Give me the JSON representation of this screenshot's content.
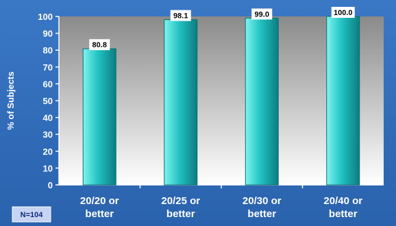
{
  "chart_data": {
    "type": "bar",
    "title": "",
    "xlabel": "",
    "ylabel": "% of Subjects",
    "categories": [
      "20/20 or better",
      "20/25 or better",
      "20/30 or better",
      "20/40 or better"
    ],
    "category_lines": [
      [
        "20/20 or",
        "better"
      ],
      [
        "20/25 or",
        "better"
      ],
      [
        "20/30 or",
        "better"
      ],
      [
        "20/40 or",
        "better"
      ]
    ],
    "values": [
      80.8,
      98.1,
      99.0,
      100.0
    ],
    "value_labels": [
      "80.8",
      "98.1",
      "99.0",
      "100.0"
    ],
    "ylim": [
      0,
      100
    ],
    "yticks": [
      0,
      10,
      20,
      30,
      40,
      50,
      60,
      70,
      80,
      90,
      100
    ],
    "grid": false,
    "legend": "none"
  },
  "annotation": {
    "sample_size": "N=104"
  },
  "colors": {
    "background": "#2f6cb8",
    "plot_top": "#8a8a8a",
    "plot_bottom": "#ffffff",
    "bar_light": "#7ff4f0",
    "bar_mid": "#22c3c3",
    "bar_dark": "#0c7c80",
    "label_box": "#ffffff",
    "text": "#ffffff"
  }
}
